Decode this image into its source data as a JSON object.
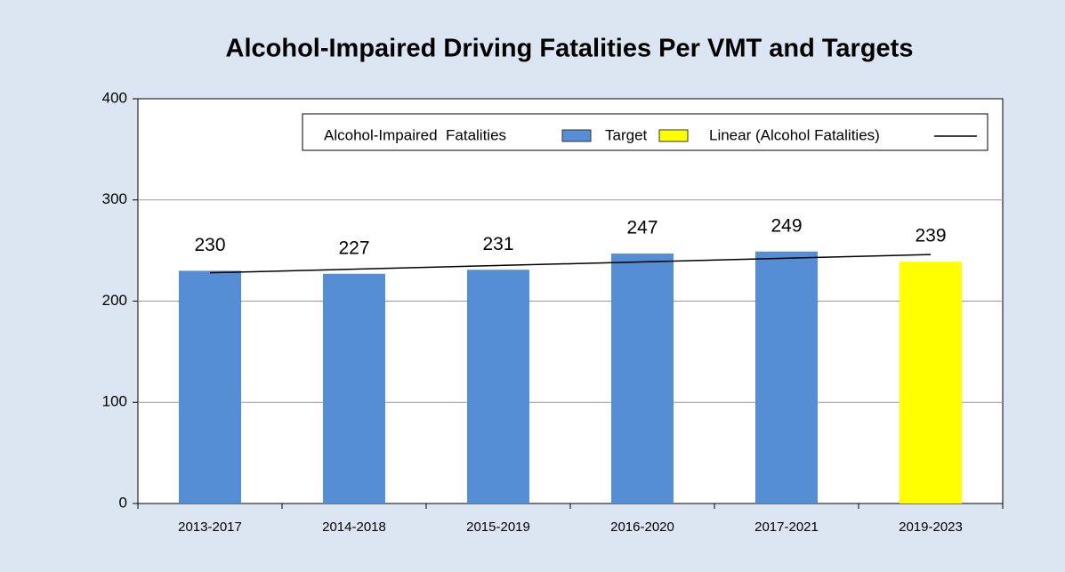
{
  "chart_data": {
    "type": "bar",
    "title": "Alcohol-Impaired Driving Fatalities Per VMT and Targets",
    "categories": [
      "2013-2017",
      "2014-2018",
      "2015-2019",
      "2016-2020",
      "2017-2021",
      "2019-2023"
    ],
    "series": [
      {
        "name": "Alcohol-Impaired  Fatalities",
        "color": "#558ed5",
        "values": [
          230,
          227,
          231,
          247,
          249,
          null
        ]
      },
      {
        "name": "Target",
        "color": "#ffff00",
        "values": [
          null,
          null,
          null,
          null,
          null,
          239
        ]
      }
    ],
    "trendline": {
      "name": "Linear (Alcohol Fatalities)",
      "color": "#000000",
      "values": [
        228,
        246
      ]
    },
    "ylim": [
      0,
      400
    ],
    "yticks": [
      0,
      100,
      200,
      300,
      400
    ],
    "grid": true
  }
}
